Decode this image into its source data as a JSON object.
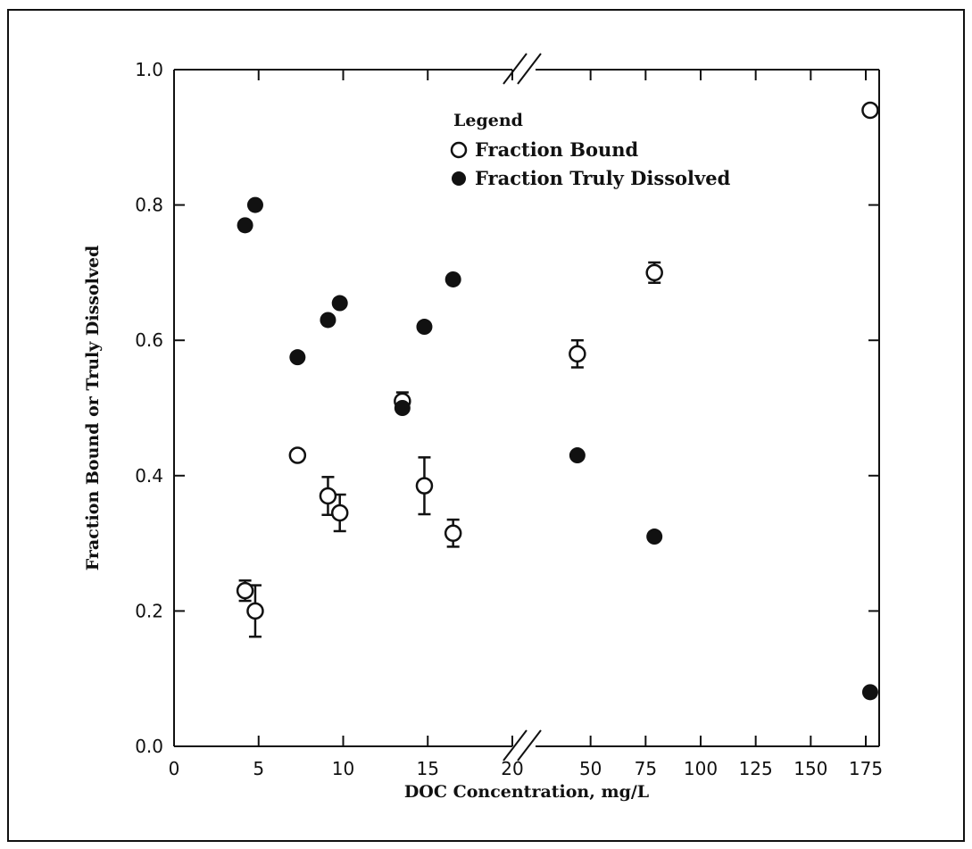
{
  "chart_data": {
    "type": "scatter",
    "xlabel": "DOC Concentration, mg/L",
    "ylabel": "Fraction Bound or Truly Dissolved",
    "x_axis_broken": true,
    "x_segments": [
      {
        "range": [
          0,
          20
        ],
        "ticks": [
          0,
          5,
          10,
          15,
          20
        ]
      },
      {
        "range": [
          25,
          175
        ],
        "ticks": [
          50,
          75,
          100,
          125,
          150,
          175
        ]
      }
    ],
    "x_tick_labels": [
      "0",
      "5",
      "10",
      "15",
      "20",
      "50",
      "75",
      "100",
      "125",
      "150",
      "175"
    ],
    "ylim": [
      0,
      1.0
    ],
    "y_ticks": [
      0.0,
      0.2,
      0.4,
      0.6,
      0.8,
      1.0
    ],
    "y_tick_labels": [
      "0.0",
      "0.2",
      "0.4",
      "0.6",
      "0.8",
      "1.0"
    ],
    "grid": false,
    "legend": {
      "title": "Legend",
      "position": "top-center",
      "entries": [
        "Fraction Bound",
        "Fraction Truly Dissolved"
      ]
    },
    "series": [
      {
        "name": "Fraction Bound",
        "marker": "open-circle",
        "points": [
          {
            "x": 4.2,
            "y": 0.23,
            "err": 0.015
          },
          {
            "x": 4.8,
            "y": 0.2,
            "err": 0.038
          },
          {
            "x": 7.3,
            "y": 0.43,
            "err": 0
          },
          {
            "x": 9.1,
            "y": 0.37,
            "err": 0.028
          },
          {
            "x": 9.8,
            "y": 0.345,
            "err": 0.027
          },
          {
            "x": 13.5,
            "y": 0.51,
            "err": 0.013
          },
          {
            "x": 14.8,
            "y": 0.385,
            "err": 0.042
          },
          {
            "x": 16.5,
            "y": 0.315,
            "err": 0.02
          },
          {
            "x": 44,
            "y": 0.58,
            "err": 0.02
          },
          {
            "x": 79,
            "y": 0.7,
            "err": 0.015
          },
          {
            "x": 177,
            "y": 0.94,
            "err": 0
          }
        ]
      },
      {
        "name": "Fraction Truly Dissolved",
        "marker": "filled-circle",
        "points": [
          {
            "x": 4.2,
            "y": 0.77
          },
          {
            "x": 4.8,
            "y": 0.8
          },
          {
            "x": 7.3,
            "y": 0.575
          },
          {
            "x": 9.1,
            "y": 0.63
          },
          {
            "x": 9.8,
            "y": 0.655
          },
          {
            "x": 13.5,
            "y": 0.5
          },
          {
            "x": 14.8,
            "y": 0.62
          },
          {
            "x": 16.5,
            "y": 0.69
          },
          {
            "x": 44,
            "y": 0.43
          },
          {
            "x": 79,
            "y": 0.31
          },
          {
            "x": 177,
            "y": 0.08
          }
        ]
      }
    ]
  }
}
